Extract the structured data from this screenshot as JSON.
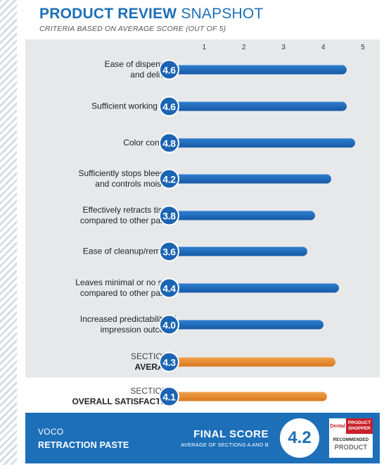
{
  "header": {
    "title_bold": "PRODUCT REVIEW",
    "title_light": "SNAPSHOT",
    "subtitle": "CRITERIA BASED ON AVERAGE SCORE (OUT OF 5)"
  },
  "chart_data": {
    "type": "bar",
    "orientation": "horizontal",
    "xlim": [
      0,
      5
    ],
    "ticks": [
      "1",
      "2",
      "3",
      "4",
      "5"
    ],
    "rows": [
      {
        "line1": "Ease of dispensing",
        "line2": "and delivery",
        "value": 4.6,
        "label": "4.6",
        "group": "criteria"
      },
      {
        "line1": "Sufficient working time",
        "line2": "",
        "value": 4.6,
        "label": "4.6",
        "group": "criteria"
      },
      {
        "line1": "Color contrast",
        "line2": "",
        "value": 4.8,
        "label": "4.8",
        "group": "criteria"
      },
      {
        "line1": "Sufficiently stops bleeding",
        "line2": "and controls moisture",
        "value": 4.2,
        "label": "4.2",
        "group": "criteria"
      },
      {
        "line1": "Effectively retracts tissue",
        "line2": "compared to other pastes",
        "value": 3.8,
        "label": "3.8",
        "group": "criteria"
      },
      {
        "line1": "Ease of cleanup/removal",
        "line2": "",
        "value": 3.6,
        "label": "3.6",
        "group": "criteria"
      },
      {
        "line1": "Leaves minimal or no stain",
        "line2": "compared to other pastes",
        "value": 4.4,
        "label": "4.4",
        "group": "criteria"
      },
      {
        "line1": "Increased predictability of",
        "line2": "impression outcome",
        "value": 4.0,
        "label": "4.0",
        "group": "criteria"
      },
      {
        "line1": "SECTION A",
        "line2": "AVERAGE",
        "value": 4.3,
        "label": "4.3",
        "group": "section"
      },
      {
        "line1": "SECTION B",
        "line2": "OVERALL SATISFACTION",
        "value": 4.1,
        "label": "4.1",
        "group": "section"
      }
    ]
  },
  "colors": {
    "brand_blue": "#1d6fb8",
    "bar_blue": "#1559a6",
    "bar_orange": "#e88a2e",
    "logo_red": "#c8202a"
  },
  "footer": {
    "brand": "VOCO",
    "product": "RETRACTION PASTE",
    "final_label": "FINAL SCORE",
    "final_sub": "AVERAGE OF SECTIONS A AND B",
    "final_value": "4.2",
    "logo": {
      "dental": "Dental",
      "product": "PRODUCT",
      "shopper": "SHOPPER",
      "recommended": "RECOMMENDED",
      "product_word": "PRODUCT"
    }
  }
}
